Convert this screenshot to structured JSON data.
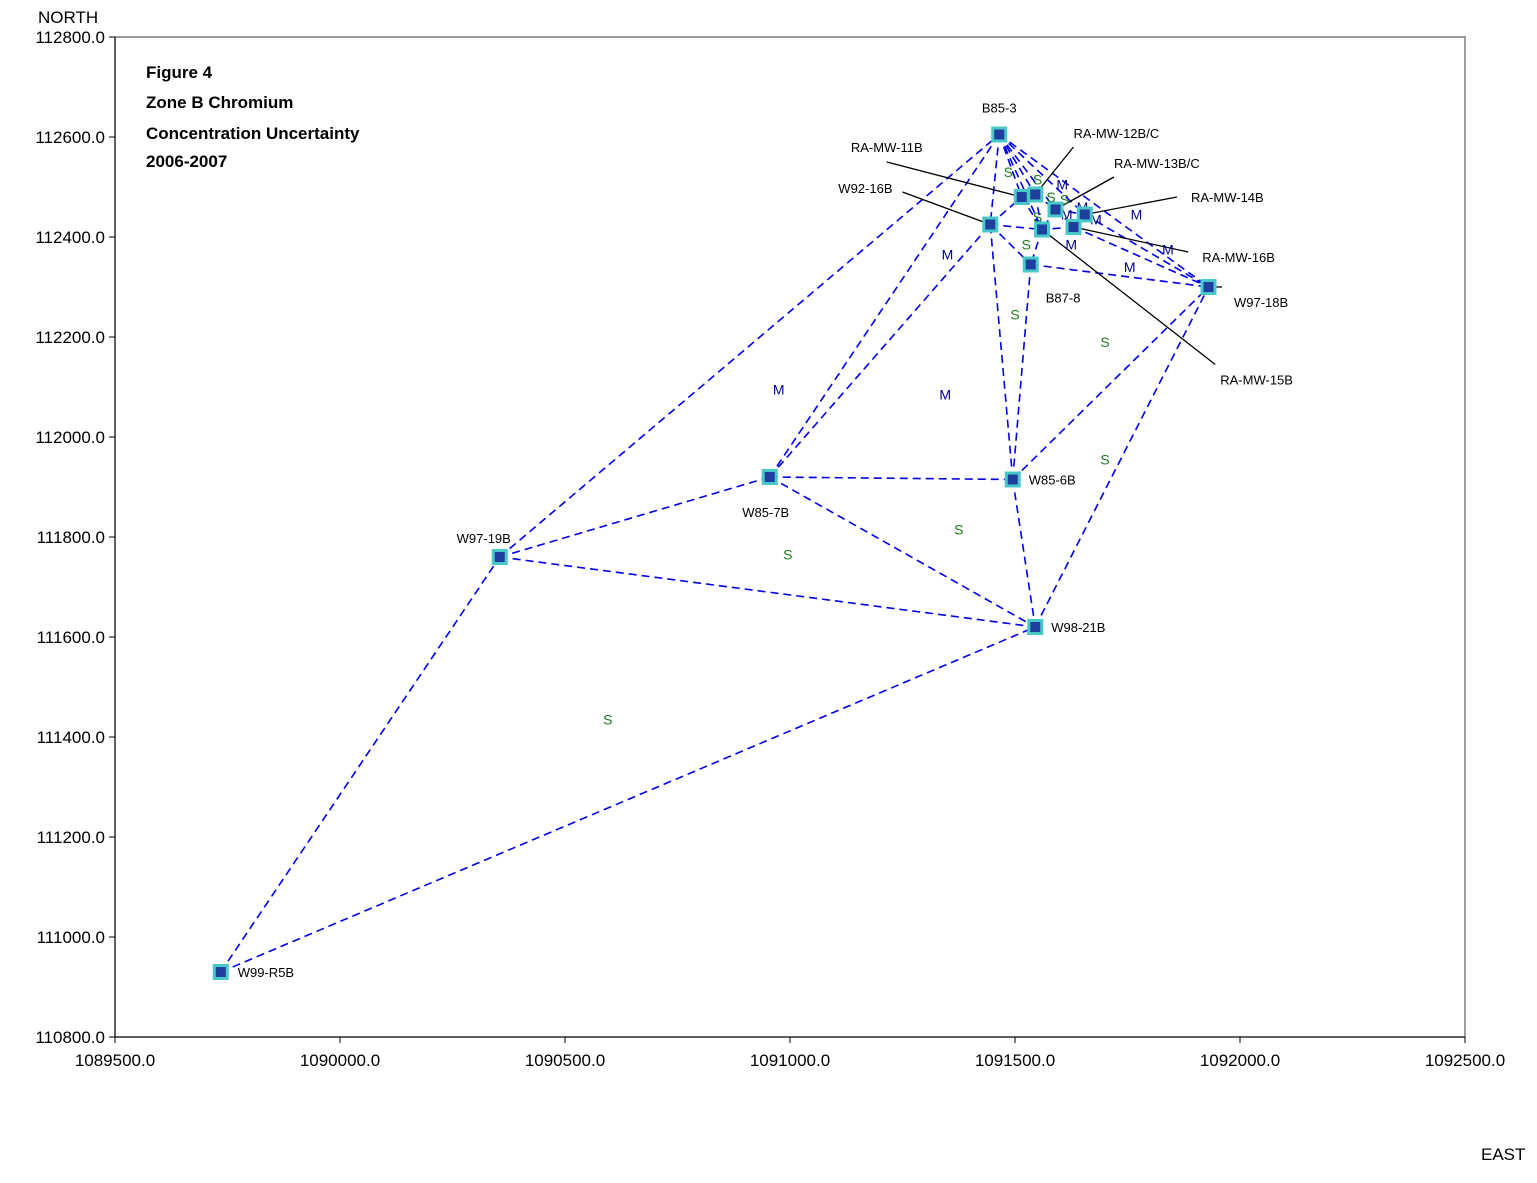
{
  "chart_data": {
    "type": "scatter",
    "title_lines": [
      "Figure 4",
      "Zone B Chromium",
      "Concentration Uncertainty",
      "2006-2007"
    ],
    "xlabel": "EAST",
    "ylabel": "NORTH",
    "xlim": [
      1089500.0,
      1092500.0
    ],
    "ylim": [
      110800.0,
      112800.0
    ],
    "x_ticks": [
      "1089500.0",
      "1090000.0",
      "1090500.0",
      "1091000.0",
      "1091500.0",
      "1092000.0",
      "1092500.0"
    ],
    "y_ticks": [
      "110800.0",
      "111000.0",
      "111200.0",
      "111400.0",
      "111600.0",
      "111800.0",
      "112000.0",
      "112200.0",
      "112400.0",
      "112600.0",
      "112800.0"
    ],
    "grid": false,
    "wells": [
      {
        "name": "B85-3",
        "x": 1091465,
        "y": 112605
      },
      {
        "name": "RA-MW-11B",
        "x": 1091515,
        "y": 112480
      },
      {
        "name": "RA-MW-12B/C",
        "x": 1091545,
        "y": 112485
      },
      {
        "name": "RA-MW-13B/C",
        "x": 1091590,
        "y": 112455
      },
      {
        "name": "RA-MW-14B",
        "x": 1091655,
        "y": 112445
      },
      {
        "name": "RA-MW-16B",
        "x": 1091630,
        "y": 112420
      },
      {
        "name": "RA-MW-15B",
        "x": 1091560,
        "y": 112415
      },
      {
        "name": "W92-16B",
        "x": 1091445,
        "y": 112425
      },
      {
        "name": "B87-8",
        "x": 1091535,
        "y": 112345
      },
      {
        "name": "W97-18B",
        "x": 1091930,
        "y": 112300
      },
      {
        "name": "W85-7B",
        "x": 1090955,
        "y": 111920
      },
      {
        "name": "W85-6B",
        "x": 1091495,
        "y": 111915
      },
      {
        "name": "W97-19B",
        "x": 1090355,
        "y": 111760
      },
      {
        "name": "W98-21B",
        "x": 1091545,
        "y": 111620
      },
      {
        "name": "W99-R5B",
        "x": 1089735,
        "y": 110930
      }
    ],
    "triangulation_edges": [
      [
        "W99-R5B",
        "W97-19B"
      ],
      [
        "W99-R5B",
        "W98-21B"
      ],
      [
        "W97-19B",
        "B85-3"
      ],
      [
        "W97-19B",
        "W85-7B"
      ],
      [
        "W97-19B",
        "W98-21B"
      ],
      [
        "W85-7B",
        "B85-3"
      ],
      [
        "W85-7B",
        "W92-16B"
      ],
      [
        "W85-7B",
        "W85-6B"
      ],
      [
        "W85-7B",
        "W98-21B"
      ],
      [
        "W85-6B",
        "W92-16B"
      ],
      [
        "W85-6B",
        "B87-8"
      ],
      [
        "W85-6B",
        "W97-18B"
      ],
      [
        "W85-6B",
        "W98-21B"
      ],
      [
        "W98-21B",
        "W97-18B"
      ],
      [
        "B85-3",
        "W92-16B"
      ],
      [
        "B85-3",
        "RA-MW-11B"
      ],
      [
        "B85-3",
        "RA-MW-12B/C"
      ],
      [
        "B85-3",
        "RA-MW-13B/C"
      ],
      [
        "B85-3",
        "RA-MW-14B"
      ],
      [
        "B85-3",
        "RA-MW-15B"
      ],
      [
        "B85-3",
        "W97-18B"
      ],
      [
        "W92-16B",
        "RA-MW-11B"
      ],
      [
        "W92-16B",
        "RA-MW-15B"
      ],
      [
        "W92-16B",
        "B87-8"
      ],
      [
        "RA-MW-11B",
        "RA-MW-12B/C"
      ],
      [
        "RA-MW-11B",
        "RA-MW-15B"
      ],
      [
        "RA-MW-12B/C",
        "RA-MW-13B/C"
      ],
      [
        "RA-MW-12B/C",
        "RA-MW-15B"
      ],
      [
        "RA-MW-13B/C",
        "RA-MW-14B"
      ],
      [
        "RA-MW-13B/C",
        "RA-MW-16B"
      ],
      [
        "RA-MW-13B/C",
        "RA-MW-15B"
      ],
      [
        "RA-MW-14B",
        "RA-MW-16B"
      ],
      [
        "RA-MW-14B",
        "W97-18B"
      ],
      [
        "RA-MW-16B",
        "RA-MW-15B"
      ],
      [
        "RA-MW-16B",
        "W97-18B"
      ],
      [
        "RA-MW-15B",
        "B87-8"
      ],
      [
        "B87-8",
        "W97-18B"
      ]
    ],
    "label_leaders": [
      {
        "well": "RA-MW-11B",
        "x": 1091215,
        "y": 112550
      },
      {
        "well": "RA-MW-12B/C",
        "x": 1091630,
        "y": 112580
      },
      {
        "well": "RA-MW-13B/C",
        "x": 1091720,
        "y": 112520
      },
      {
        "well": "RA-MW-14B",
        "x": 1091860,
        "y": 112480
      },
      {
        "well": "RA-MW-16B",
        "x": 1091885,
        "y": 112370
      },
      {
        "well": "RA-MW-15B",
        "x": 1091945,
        "y": 112145
      },
      {
        "well": "W92-16B",
        "x": 1091250,
        "y": 112490
      },
      {
        "well": "W97-18B",
        "x": 1091960,
        "y": 112300
      }
    ],
    "region_labels": [
      {
        "text": "S",
        "x": 1091485,
        "y": 112530
      },
      {
        "text": "S",
        "x": 1091550,
        "y": 112515
      },
      {
        "text": "M",
        "x": 1091605,
        "y": 112505
      },
      {
        "text": "S",
        "x": 1091580,
        "y": 112480
      },
      {
        "text": "S",
        "x": 1091610,
        "y": 112475
      },
      {
        "text": "M",
        "x": 1091650,
        "y": 112460
      },
      {
        "text": "S",
        "x": 1091550,
        "y": 112440
      },
      {
        "text": "M",
        "x": 1091615,
        "y": 112445
      },
      {
        "text": "M",
        "x": 1091680,
        "y": 112435
      },
      {
        "text": "M",
        "x": 1091770,
        "y": 112445
      },
      {
        "text": "S",
        "x": 1091525,
        "y": 112385
      },
      {
        "text": "M",
        "x": 1091625,
        "y": 112385
      },
      {
        "text": "M",
        "x": 1091840,
        "y": 112375
      },
      {
        "text": "M",
        "x": 1091755,
        "y": 112340
      },
      {
        "text": "M",
        "x": 1091350,
        "y": 112365
      },
      {
        "text": "S",
        "x": 1091500,
        "y": 112245
      },
      {
        "text": "S",
        "x": 1091700,
        "y": 112190
      },
      {
        "text": "M",
        "x": 1090975,
        "y": 112095
      },
      {
        "text": "M",
        "x": 1091345,
        "y": 112085
      },
      {
        "text": "S",
        "x": 1091700,
        "y": 111955
      },
      {
        "text": "S",
        "x": 1091375,
        "y": 111815
      },
      {
        "text": "S",
        "x": 1090995,
        "y": 111765
      },
      {
        "text": "S",
        "x": 1090595,
        "y": 111435
      }
    ]
  }
}
